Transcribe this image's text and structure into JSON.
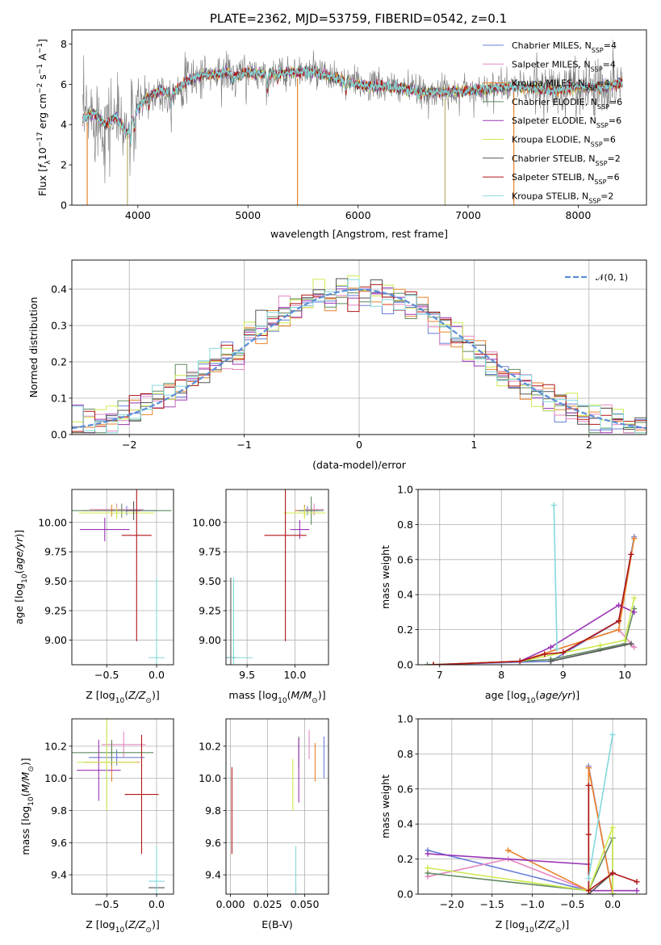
{
  "title": "PLATE=2362, MJD=53759, FIBERID=0542, z=0.1",
  "series": [
    {
      "name": "Chabrier MILES, N_SSP=4",
      "base": "Chabrier MILES, N",
      "sub": "SSP",
      "tail": "=4",
      "color": "#6a7fd8"
    },
    {
      "name": "Salpeter MILES, N_SSP=4",
      "base": "Salpeter MILES, N",
      "sub": "SSP",
      "tail": "=4",
      "color": "#e587c2"
    },
    {
      "name": "Kroupa MILES, N_SSP=4",
      "base": "Kroupa MILES, N",
      "sub": "SSP",
      "tail": "=4",
      "color": "#e9832c"
    },
    {
      "name": "Chabrier ELODIE, N_SSP=6",
      "base": "Chabrier ELODIE, N",
      "sub": "SSP",
      "tail": "=6",
      "color": "#5f8a5f"
    },
    {
      "name": "Salpeter ELODIE, N_SSP=6",
      "base": "Salpeter ELODIE, N",
      "sub": "SSP",
      "tail": "=6",
      "color": "#9b35b5"
    },
    {
      "name": "Kroupa ELODIE, N_SSP=6",
      "base": "Kroupa ELODIE, N",
      "sub": "SSP",
      "tail": "=6",
      "color": "#cde94e"
    },
    {
      "name": "Chabrier STELIB, N_SSP=2",
      "base": "Chabrier STELIB, N",
      "sub": "SSP",
      "tail": "=2",
      "color": "#555555"
    },
    {
      "name": "Salpeter STELIB, N_SSP=6",
      "base": "Salpeter STELIB, N",
      "sub": "SSP",
      "tail": "=6",
      "color": "#b01515"
    },
    {
      "name": "Kroupa STELIB, N_SSP=2",
      "base": "Kroupa STELIB, N",
      "sub": "SSP",
      "tail": "=2",
      "color": "#84d9dc"
    }
  ],
  "chart_data": [
    {
      "id": "spectrum",
      "type": "line",
      "xlabel": "wavelength [Angstrom, rest frame]",
      "ylabel": "Flux [f_λ 10^-17 erg cm^-2 s^-1 A^-1]",
      "xlim": [
        3400,
        8620
      ],
      "ylim": [
        0,
        8.7
      ],
      "xticks": [
        4000,
        5000,
        6000,
        7000,
        8000
      ],
      "yticks": [
        0,
        2,
        4,
        6,
        8
      ],
      "grid": false,
      "legend": "upper-right",
      "data_envelope": [
        [
          3500,
          4.3
        ],
        [
          3600,
          4.6
        ],
        [
          3700,
          4.0
        ],
        [
          3800,
          4.4
        ],
        [
          3900,
          3.6
        ],
        [
          4000,
          4.9
        ],
        [
          4100,
          5.4
        ],
        [
          4200,
          5.7
        ],
        [
          4300,
          5.5
        ],
        [
          4400,
          6.0
        ],
        [
          4500,
          6.3
        ],
        [
          4600,
          6.5
        ],
        [
          4700,
          6.5
        ],
        [
          4800,
          6.6
        ],
        [
          4900,
          6.4
        ],
        [
          5000,
          6.6
        ],
        [
          5200,
          6.5
        ],
        [
          5400,
          6.6
        ],
        [
          5600,
          6.6
        ],
        [
          5800,
          6.3
        ],
        [
          6000,
          6.0
        ],
        [
          6200,
          5.9
        ],
        [
          6400,
          5.8
        ],
        [
          6600,
          5.6
        ],
        [
          6800,
          5.6
        ],
        [
          7000,
          5.7
        ],
        [
          7200,
          5.8
        ],
        [
          7400,
          5.9
        ],
        [
          7600,
          5.8
        ],
        [
          7800,
          5.7
        ],
        [
          8000,
          5.9
        ],
        [
          8200,
          5.8
        ],
        [
          8400,
          6.1
        ]
      ]
    },
    {
      "id": "residuals",
      "type": "line",
      "xlabel": "(data-model)/error",
      "ylabel": "Normed distribution",
      "xlim": [
        -2.5,
        2.5
      ],
      "ylim": [
        0,
        0.48
      ],
      "xticks": [
        -2,
        -1,
        0,
        1,
        2
      ],
      "yticks": [
        0.0,
        0.1,
        0.2,
        0.3,
        0.4
      ],
      "grid": true,
      "legend": "upper-right",
      "curve_name": "𝒩(0, 1)",
      "curve_color": "#5b8ed6"
    },
    {
      "id": "age_vs_Z",
      "type": "scatter",
      "xlabel": "Z [log10(Z/Z_⊙)]",
      "ylabel": "age  [log10(age/yr)]",
      "xlim": [
        -0.85,
        0.17
      ],
      "ylim": [
        8.79,
        10.28
      ],
      "xticks": [
        -0.5,
        0.0
      ],
      "yticks": [
        9.0,
        9.25,
        9.5,
        9.75,
        10.0
      ],
      "grid": true,
      "points": [
        {
          "s": 0,
          "x": -0.3,
          "y": 10.1,
          "xerr": 0.3,
          "yerr": 0.04
        },
        {
          "s": 1,
          "x": -0.4,
          "y": 10.11,
          "xerr": 0.27,
          "yerr": 0.05
        },
        {
          "s": 2,
          "x": -0.45,
          "y": 10.1,
          "xerr": 0.3,
          "yerr": 0.05
        },
        {
          "s": 3,
          "x": -0.35,
          "y": 10.1,
          "xerr": 0.5,
          "yerr": 0.06
        },
        {
          "s": 4,
          "x": -0.52,
          "y": 9.94,
          "xerr": 0.25,
          "yerr": 0.1
        },
        {
          "s": 5,
          "x": -0.4,
          "y": 10.08,
          "xerr": 0.38,
          "yerr": 0.05
        },
        {
          "s": 6,
          "x": -0.23,
          "y": 10.1,
          "xerr": 0.08,
          "yerr": 0.08
        },
        {
          "s": 7,
          "x": -0.2,
          "y": 9.89,
          "xerr": 0.15,
          "yerr": 0.9
        },
        {
          "s": 8,
          "x": 0.0,
          "y": 8.85,
          "xerr": 0.08,
          "yerr": 0.68
        }
      ]
    },
    {
      "id": "age_vs_mass",
      "type": "scatter",
      "xlabel": "mass [log10(M/M_⊙)]",
      "ylabel": "",
      "xlim": [
        9.28,
        10.35
      ],
      "ylim": [
        8.79,
        10.28
      ],
      "xticks": [
        9.5,
        10.0
      ],
      "yticks": [
        9.0,
        9.25,
        9.5,
        9.75,
        10.0
      ],
      "grid": true,
      "points": [
        {
          "s": 0,
          "x": 10.13,
          "y": 10.1,
          "xerr": 0.12,
          "yerr": 0.04
        },
        {
          "s": 1,
          "x": 10.2,
          "y": 10.11,
          "xerr": 0.1,
          "yerr": 0.05
        },
        {
          "s": 2,
          "x": 10.1,
          "y": 10.1,
          "xerr": 0.1,
          "yerr": 0.05
        },
        {
          "s": 3,
          "x": 10.17,
          "y": 10.1,
          "xerr": 0.13,
          "yerr": 0.12
        },
        {
          "s": 4,
          "x": 10.05,
          "y": 9.94,
          "xerr": 0.1,
          "yerr": 0.08
        },
        {
          "s": 5,
          "x": 10.1,
          "y": 10.08,
          "xerr": 0.22,
          "yerr": 0.05
        },
        {
          "s": 6,
          "x": 9.33,
          "y": 8.85,
          "xerr": 0.05,
          "yerr": 0.68
        },
        {
          "s": 7,
          "x": 9.9,
          "y": 9.89,
          "xerr": 0.22,
          "yerr": 0.9
        },
        {
          "s": 8,
          "x": 9.36,
          "y": 8.85,
          "xerr": 0.2,
          "yerr": 0.68
        }
      ]
    },
    {
      "id": "massweight_vs_age",
      "type": "line",
      "xlabel": "age  [log10(age/yr)]",
      "ylabel": "mass weight",
      "xlim": [
        6.65,
        10.35
      ],
      "ylim": [
        0,
        1
      ],
      "xticks": [
        7,
        8,
        9,
        10
      ],
      "yticks": [
        0.0,
        0.2,
        0.4,
        0.6,
        0.8,
        1.0
      ],
      "grid": true,
      "lines": [
        {
          "s": 0,
          "x": [
            6.9,
            8.8,
            9.9,
            10.15
          ],
          "y": [
            0.0,
            0.02,
            0.25,
            0.73
          ]
        },
        {
          "s": 1,
          "x": [
            6.9,
            8.3,
            9.9,
            10.15
          ],
          "y": [
            0.0,
            0.02,
            0.2,
            0.1
          ]
        },
        {
          "s": 2,
          "x": [
            6.9,
            8.3,
            9.9,
            10.15
          ],
          "y": [
            0.0,
            0.02,
            0.2,
            0.72
          ]
        },
        {
          "s": 3,
          "x": [
            6.8,
            8.3,
            8.8,
            9.6,
            10.0,
            10.15
          ],
          "y": [
            0.0,
            0.02,
            0.03,
            0.09,
            0.12,
            0.32
          ]
        },
        {
          "s": 4,
          "x": [
            6.9,
            8.3,
            8.8,
            9.9,
            10.15
          ],
          "y": [
            0.0,
            0.02,
            0.1,
            0.34,
            0.3
          ]
        },
        {
          "s": 5,
          "x": [
            6.9,
            8.3,
            9.6,
            10.0,
            10.15
          ],
          "y": [
            0.0,
            0.02,
            0.11,
            0.14,
            0.38
          ]
        },
        {
          "s": 6,
          "x": [
            8.8,
            10.1
          ],
          "y": [
            0.02,
            0.12
          ]
        },
        {
          "s": 7,
          "x": [
            6.9,
            8.3,
            8.7,
            9.0,
            9.9,
            10.1
          ],
          "y": [
            0.0,
            0.02,
            0.06,
            0.07,
            0.25,
            0.63
          ]
        },
        {
          "s": 8,
          "x": [
            8.85,
            8.9
          ],
          "y": [
            0.91,
            0.09
          ]
        }
      ]
    },
    {
      "id": "mass_vs_Z",
      "type": "scatter",
      "xlabel": "Z [log10(Z/Z_⊙)]",
      "ylabel": "mass [log10(M/M_⊙)]",
      "xlim": [
        -0.85,
        0.17
      ],
      "ylim": [
        9.28,
        10.37
      ],
      "xticks": [
        -0.5,
        0.0
      ],
      "yticks": [
        9.4,
        9.6,
        9.8,
        10.0,
        10.2
      ],
      "grid": true,
      "points": [
        {
          "s": 0,
          "x": -0.4,
          "y": 10.13,
          "xerr": 0.28,
          "yerr": 0.05
        },
        {
          "s": 1,
          "x": -0.33,
          "y": 10.21,
          "xerr": 0.22,
          "yerr": 0.08
        },
        {
          "s": 2,
          "x": -0.45,
          "y": 10.1,
          "xerr": 0.28,
          "yerr": 0.12
        },
        {
          "s": 3,
          "x": -0.45,
          "y": 10.16,
          "xerr": 0.42,
          "yerr": 0.08
        },
        {
          "s": 4,
          "x": -0.58,
          "y": 10.05,
          "xerr": 0.22,
          "yerr": 0.19
        },
        {
          "s": 5,
          "x": -0.5,
          "y": 10.1,
          "xerr": 0.3,
          "yerr": 0.3
        },
        {
          "s": 6,
          "x": 0.0,
          "y": 9.32,
          "xerr": 0.08,
          "yerr": 0.02
        },
        {
          "s": 7,
          "x": -0.15,
          "y": 9.9,
          "xerr": 0.17,
          "yerr": 0.37
        },
        {
          "s": 8,
          "x": 0.0,
          "y": 9.36,
          "xerr": 0.08,
          "yerr": 0.22
        }
      ]
    },
    {
      "id": "mass_vs_EBV",
      "type": "scatter",
      "xlabel": "E(B-V)",
      "ylabel": "",
      "xlim": [
        -0.003,
        0.066
      ],
      "ylim": [
        9.28,
        10.37
      ],
      "xticks": [
        0.0,
        0.025,
        0.05
      ],
      "yticks": [
        9.4,
        9.6,
        9.8,
        10.0,
        10.2
      ],
      "grid": true,
      "points": [
        {
          "s": 0,
          "x": 0.063,
          "y": 10.13,
          "xerr": 0,
          "yerr": 0.13
        },
        {
          "s": 1,
          "x": 0.053,
          "y": 10.21,
          "xerr": 0,
          "yerr": 0.09
        },
        {
          "s": 2,
          "x": 0.057,
          "y": 10.1,
          "xerr": 0,
          "yerr": 0.12
        },
        {
          "s": 3,
          "x": 0.046,
          "y": 10.16,
          "xerr": 0,
          "yerr": 0.1
        },
        {
          "s": 4,
          "x": 0.046,
          "y": 10.05,
          "xerr": 0,
          "yerr": 0.2
        },
        {
          "s": 5,
          "x": 0.042,
          "y": 9.96,
          "xerr": 0,
          "yerr": 0.16
        },
        {
          "s": 6,
          "x": 0.044,
          "y": 9.32,
          "xerr": 0,
          "yerr": 0.02
        },
        {
          "s": 7,
          "x": 0.001,
          "y": 9.8,
          "xerr": 0,
          "yerr": 0.27
        },
        {
          "s": 8,
          "x": 0.044,
          "y": 9.36,
          "xerr": 0,
          "yerr": 0.22
        }
      ]
    },
    {
      "id": "massweight_vs_Z",
      "type": "line",
      "xlabel": "Z [log10(Z/Z_⊙)]",
      "ylabel": "mass weight",
      "xlim": [
        -2.42,
        0.42
      ],
      "ylim": [
        0,
        1
      ],
      "xticks": [
        -2.0,
        -1.5,
        -1.0,
        -0.5,
        0.0
      ],
      "yticks": [
        0.0,
        0.2,
        0.4,
        0.6,
        0.8,
        1.0
      ],
      "grid": true,
      "lines": [
        {
          "s": 0,
          "x": [
            -2.3,
            -0.3,
            -0.3,
            0.0
          ],
          "y": [
            0.25,
            0.02,
            0.73,
            0.0
          ]
        },
        {
          "s": 1,
          "x": [
            -2.3,
            -1.3,
            -0.3,
            -0.3,
            0.0
          ],
          "y": [
            0.1,
            0.2,
            0.02,
            0.72,
            0.0
          ]
        },
        {
          "s": 2,
          "x": [
            -1.3,
            -0.3,
            -0.3,
            0.0
          ],
          "y": [
            0.25,
            0.02,
            0.72,
            0.0
          ]
        },
        {
          "s": 3,
          "x": [
            -2.3,
            -0.3,
            0.0,
            0.0
          ],
          "y": [
            0.12,
            0.02,
            0.32,
            0.0
          ]
        },
        {
          "s": 4,
          "x": [
            -2.3,
            -0.3,
            -0.3,
            0.3
          ],
          "y": [
            0.23,
            0.17,
            0.02,
            0.02
          ]
        },
        {
          "s": 5,
          "x": [
            -2.3,
            -0.3,
            0.0,
            0.0
          ],
          "y": [
            0.15,
            0.02,
            0.38,
            0.0
          ]
        },
        {
          "s": 6,
          "x": [
            -0.3,
            0.0
          ],
          "y": [
            0.0,
            0.12
          ]
        },
        {
          "s": 7,
          "x": [
            -0.3,
            -0.3,
            -0.3,
            0.0,
            0.3
          ],
          "y": [
            0.62,
            0.34,
            0.02,
            0.12,
            0.07
          ]
        },
        {
          "s": 8,
          "x": [
            -0.3,
            0.0
          ],
          "y": [
            0.09,
            0.91
          ]
        }
      ]
    }
  ]
}
